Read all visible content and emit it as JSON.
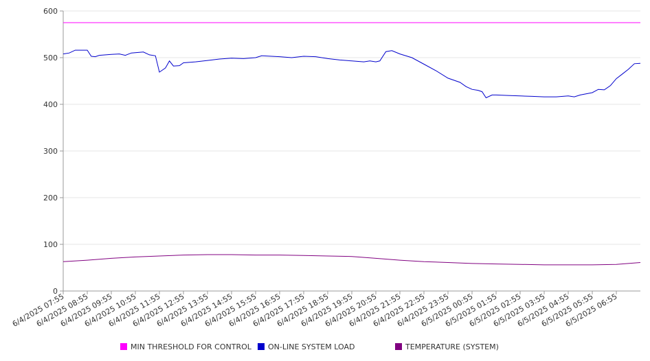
{
  "chart_data": {
    "type": "line",
    "title": "",
    "xlabel": "",
    "ylabel": "",
    "ylim": [
      0,
      600
    ],
    "yticks": [
      0,
      100,
      200,
      300,
      400,
      500,
      600
    ],
    "grid": true,
    "legend_position": "bottom",
    "x_start": "6/4/2025 07:55",
    "x_end": "6/5/2025 07:55",
    "x_tick_labels": [
      "6/4/2025 07:55",
      "6/4/2025 08:55",
      "6/4/2025 09:55",
      "6/4/2025 10:55",
      "6/4/2025 11:55",
      "6/4/2025 12:55",
      "6/4/2025 13:55",
      "6/4/2025 14:55",
      "6/4/2025 15:55",
      "6/4/2025 16:55",
      "6/4/2025 17:55",
      "6/4/2025 18:55",
      "6/4/2025 19:55",
      "6/4/2025 20:55",
      "6/4/2025 21:55",
      "6/4/2025 22:55",
      "6/4/2025 23:55",
      "6/5/2025 00:55",
      "6/5/2025 01:55",
      "6/5/2025 02:55",
      "6/5/2025 03:55",
      "6/5/2025 04:55",
      "6/5/2025 05:55",
      "6/5/2025 06:55"
    ],
    "series": [
      {
        "name": "MIN THRESHOLD FOR CONTROL",
        "color": "#ff00ff",
        "points": [
          [
            "6/4/2025 07:55",
            575
          ],
          [
            "6/5/2025 07:55",
            575
          ]
        ]
      },
      {
        "name": "ON-LINE SYSTEM LOAD",
        "color": "#0000cc",
        "points": [
          [
            "6/4/2025 07:55",
            508
          ],
          [
            "6/4/2025 08:10",
            510
          ],
          [
            "6/4/2025 08:25",
            516
          ],
          [
            "6/4/2025 08:40",
            516
          ],
          [
            "6/4/2025 08:55",
            516
          ],
          [
            "6/4/2025 09:05",
            503
          ],
          [
            "6/4/2025 09:15",
            502
          ],
          [
            "6/4/2025 09:25",
            505
          ],
          [
            "6/4/2025 09:55",
            507
          ],
          [
            "6/4/2025 10:15",
            508
          ],
          [
            "6/4/2025 10:30",
            505
          ],
          [
            "6/4/2025 10:45",
            510
          ],
          [
            "6/4/2025 11:00",
            511
          ],
          [
            "6/4/2025 11:15",
            512
          ],
          [
            "6/4/2025 11:30",
            506
          ],
          [
            "6/4/2025 11:45",
            504
          ],
          [
            "6/4/2025 11:55",
            469
          ],
          [
            "6/4/2025 12:10",
            478
          ],
          [
            "6/4/2025 12:20",
            493
          ],
          [
            "6/4/2025 12:30",
            482
          ],
          [
            "6/4/2025 12:45",
            483
          ],
          [
            "6/4/2025 12:55",
            489
          ],
          [
            "6/4/2025 13:25",
            491
          ],
          [
            "6/4/2025 13:55",
            494
          ],
          [
            "6/4/2025 14:25",
            497
          ],
          [
            "6/4/2025 14:55",
            499
          ],
          [
            "6/4/2025 15:25",
            498
          ],
          [
            "6/4/2025 15:55",
            500
          ],
          [
            "6/4/2025 16:10",
            504
          ],
          [
            "6/4/2025 16:55",
            502
          ],
          [
            "6/4/2025 17:25",
            500
          ],
          [
            "6/4/2025 17:55",
            503
          ],
          [
            "6/4/2025 18:25",
            502
          ],
          [
            "6/4/2025 18:55",
            498
          ],
          [
            "6/4/2025 19:25",
            495
          ],
          [
            "6/4/2025 19:55",
            493
          ],
          [
            "6/4/2025 20:25",
            491
          ],
          [
            "6/4/2025 20:40",
            493
          ],
          [
            "6/4/2025 20:55",
            491
          ],
          [
            "6/4/2025 21:05",
            493
          ],
          [
            "6/4/2025 21:20",
            513
          ],
          [
            "6/4/2025 21:35",
            515
          ],
          [
            "6/4/2025 21:55",
            508
          ],
          [
            "6/4/2025 22:25",
            500
          ],
          [
            "6/4/2025 22:55",
            486
          ],
          [
            "6/4/2025 23:25",
            472
          ],
          [
            "6/4/2025 23:55",
            456
          ],
          [
            "6/5/2025 00:25",
            447
          ],
          [
            "6/5/2025 00:40",
            438
          ],
          [
            "6/5/2025 00:55",
            432
          ],
          [
            "6/5/2025 01:10",
            430
          ],
          [
            "6/5/2025 01:20",
            427
          ],
          [
            "6/5/2025 01:30",
            414
          ],
          [
            "6/5/2025 01:45",
            420
          ],
          [
            "6/5/2025 01:55",
            420
          ],
          [
            "6/5/2025 02:25",
            419
          ],
          [
            "6/5/2025 02:55",
            418
          ],
          [
            "6/5/2025 03:25",
            417
          ],
          [
            "6/5/2025 03:55",
            416
          ],
          [
            "6/5/2025 04:25",
            416
          ],
          [
            "6/5/2025 04:55",
            418
          ],
          [
            "6/5/2025 05:10",
            416
          ],
          [
            "6/5/2025 05:25",
            420
          ],
          [
            "6/5/2025 05:55",
            425
          ],
          [
            "6/5/2025 06:10",
            432
          ],
          [
            "6/5/2025 06:25",
            431
          ],
          [
            "6/5/2025 06:40",
            440
          ],
          [
            "6/5/2025 06:55",
            455
          ],
          [
            "6/5/2025 07:10",
            465
          ],
          [
            "6/5/2025 07:25",
            475
          ],
          [
            "6/5/2025 07:40",
            487
          ],
          [
            "6/5/2025 07:55",
            488
          ]
        ]
      },
      {
        "name": "TEMPERATURE (SYSTEM)",
        "color": "#800080",
        "points": [
          [
            "6/4/2025 07:55",
            63
          ],
          [
            "6/4/2025 08:55",
            66
          ],
          [
            "6/4/2025 09:55",
            70
          ],
          [
            "6/4/2025 10:55",
            73
          ],
          [
            "6/4/2025 11:55",
            75
          ],
          [
            "6/4/2025 12:55",
            77
          ],
          [
            "6/4/2025 13:55",
            78
          ],
          [
            "6/4/2025 14:55",
            78
          ],
          [
            "6/4/2025 15:55",
            77
          ],
          [
            "6/4/2025 16:55",
            77
          ],
          [
            "6/4/2025 17:55",
            76
          ],
          [
            "6/4/2025 18:55",
            75
          ],
          [
            "6/4/2025 19:55",
            74
          ],
          [
            "6/4/2025 20:55",
            70
          ],
          [
            "6/4/2025 21:55",
            66
          ],
          [
            "6/4/2025 22:55",
            63
          ],
          [
            "6/4/2025 23:55",
            61
          ],
          [
            "6/5/2025 00:55",
            59
          ],
          [
            "6/5/2025 01:55",
            58
          ],
          [
            "6/5/2025 02:55",
            57
          ],
          [
            "6/5/2025 03:55",
            56
          ],
          [
            "6/5/2025 04:55",
            56
          ],
          [
            "6/5/2025 05:55",
            56
          ],
          [
            "6/5/2025 06:55",
            57
          ],
          [
            "6/5/2025 07:25",
            59
          ],
          [
            "6/5/2025 07:55",
            61
          ]
        ]
      }
    ]
  }
}
